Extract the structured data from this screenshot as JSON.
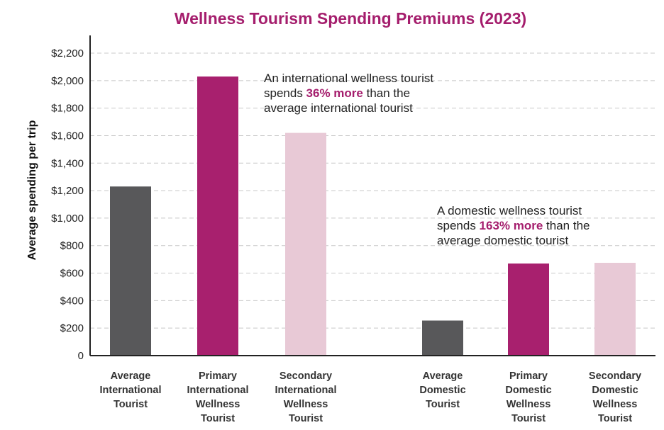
{
  "colors": {
    "title": "#a51e6d",
    "highlight": "#a51e6d",
    "average": "#58585a",
    "primary": "#a8206e",
    "secondary": "#e8c9d6",
    "grid": "#c8c8c8",
    "axis": "#222222"
  },
  "chart_data": {
    "type": "bar",
    "title": "Wellness Tourism Spending Premiums (2023)",
    "ylabel": "Average spending per trip",
    "xlabel": "",
    "ylim": [
      0,
      2200
    ],
    "yticks": [
      0,
      200,
      400,
      600,
      800,
      1000,
      1200,
      1400,
      1600,
      1800,
      2000,
      2200
    ],
    "ytick_labels": [
      "0",
      "$200",
      "$400",
      "$600",
      "$800",
      "$1,000",
      "$1,200",
      "$1,400",
      "$1,600",
      "$1,800",
      "$2,000",
      "$2,200"
    ],
    "grid": true,
    "categories": [
      [
        "Average",
        "International",
        "Tourist"
      ],
      [
        "Primary",
        "International",
        "Wellness",
        "Tourist"
      ],
      [
        "Secondary",
        "International",
        "Wellness",
        "Tourist"
      ],
      [
        "Average",
        "Domestic",
        "Tourist"
      ],
      [
        "Primary",
        "Domestic",
        "Wellness",
        "Tourist"
      ],
      [
        "Secondary",
        "Domestic",
        "Wellness",
        "Tourist"
      ]
    ],
    "values": [
      1230,
      2030,
      1620,
      255,
      670,
      675
    ],
    "bar_color_keys": [
      "average",
      "primary",
      "secondary",
      "average",
      "primary",
      "secondary"
    ],
    "annotations": [
      {
        "lines": [
          [
            {
              "text": "An international wellness tourist",
              "highlight": false
            }
          ],
          [
            {
              "text": "spends ",
              "highlight": false
            },
            {
              "text": "36% more",
              "highlight": true
            },
            {
              "text": " than the",
              "highlight": false
            }
          ],
          [
            {
              "text": "average international tourist",
              "highlight": false
            }
          ]
        ]
      },
      {
        "lines": [
          [
            {
              "text": "A domestic wellness tourist",
              "highlight": false
            }
          ],
          [
            {
              "text": "spends ",
              "highlight": false
            },
            {
              "text": "163% more",
              "highlight": true
            },
            {
              "text": " than the",
              "highlight": false
            }
          ],
          [
            {
              "text": "average domestic tourist",
              "highlight": false
            }
          ]
        ]
      }
    ]
  }
}
